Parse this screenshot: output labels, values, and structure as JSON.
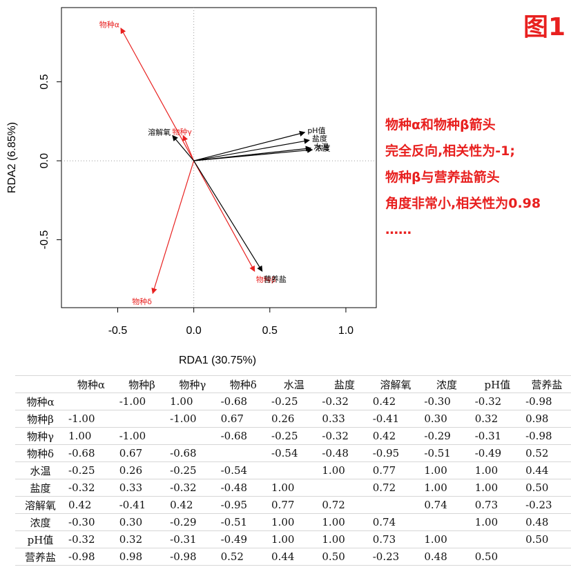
{
  "figure_label": "图1",
  "annotation_lines": [
    "物种α和物种β箭头",
    "完全反向,相关性为-1;",
    "物种β与营养盐箭头",
    "角度非常小,相关性为0.98",
    "……"
  ],
  "chart_data": {
    "type": "scatter",
    "subtype": "rda-biplot",
    "xlabel": "RDA1 (30.75%)",
    "ylabel": "RDA2 (6.85%)",
    "xlim": [
      -0.87,
      1.2
    ],
    "ylim": [
      -0.93,
      0.97
    ],
    "xticks": [
      -0.5,
      0.0,
      0.5,
      1.0
    ],
    "xtick_labels": [
      "-0.5",
      "0.0",
      "0.5",
      "1.0"
    ],
    "yticks": [
      -0.5,
      0.0,
      0.5
    ],
    "ytick_labels": [
      "-0.5",
      "0.0",
      "0.5"
    ],
    "reference_lines": {
      "x": 0,
      "y": 0,
      "style": "dotted"
    },
    "arrows": [
      {
        "label": "物种α",
        "x": -0.48,
        "y": 0.84,
        "color": "#e8201f"
      },
      {
        "label": "物种β",
        "x": 0.4,
        "y": -0.7,
        "color": "#e8201f"
      },
      {
        "label": "物种γ",
        "x": -0.07,
        "y": 0.16,
        "color": "#e8201f"
      },
      {
        "label": "物种δ",
        "x": -0.27,
        "y": -0.84,
        "color": "#e8201f"
      },
      {
        "label": "pH值",
        "x": 0.73,
        "y": 0.18,
        "color": "#000000"
      },
      {
        "label": "盐度",
        "x": 0.76,
        "y": 0.13,
        "color": "#000000"
      },
      {
        "label": "浓度",
        "x": 0.78,
        "y": 0.07,
        "color": "#000000"
      },
      {
        "label": "水温",
        "x": 0.77,
        "y": 0.08,
        "color": "#000000"
      },
      {
        "label": "溶解氧",
        "x": -0.14,
        "y": 0.16,
        "color": "#000000"
      },
      {
        "label": "营养盐",
        "x": 0.45,
        "y": -0.7,
        "color": "#000000"
      }
    ]
  },
  "table": {
    "headers": [
      "",
      "物种α",
      "物种β",
      "物种γ",
      "物种δ",
      "水温",
      "盐度",
      "溶解氧",
      "浓度",
      "pH值",
      "营养盐"
    ],
    "rows": [
      [
        "物种α",
        "",
        "-1.00",
        "1.00",
        "-0.68",
        "-0.25",
        "-0.32",
        "0.42",
        "-0.30",
        "-0.32",
        "-0.98"
      ],
      [
        "物种β",
        "-1.00",
        "",
        "-1.00",
        "0.67",
        "0.26",
        "0.33",
        "-0.41",
        "0.30",
        "0.32",
        "0.98"
      ],
      [
        "物种γ",
        "1.00",
        "-1.00",
        "",
        "-0.68",
        "-0.25",
        "-0.32",
        "0.42",
        "-0.29",
        "-0.31",
        "-0.98"
      ],
      [
        "物种δ",
        "-0.68",
        "0.67",
        "-0.68",
        "",
        "-0.54",
        "-0.48",
        "-0.95",
        "-0.51",
        "-0.49",
        "0.52"
      ],
      [
        "水温",
        "-0.25",
        "0.26",
        "-0.25",
        "-0.54",
        "",
        "1.00",
        "0.77",
        "1.00",
        "1.00",
        "0.44"
      ],
      [
        "盐度",
        "-0.32",
        "0.33",
        "-0.32",
        "-0.48",
        "1.00",
        "",
        "0.72",
        "1.00",
        "1.00",
        "0.50"
      ],
      [
        "溶解氧",
        "0.42",
        "-0.41",
        "0.42",
        "-0.95",
        "0.77",
        "0.72",
        "",
        "0.74",
        "0.73",
        "-0.23"
      ],
      [
        "浓度",
        "-0.30",
        "0.30",
        "-0.29",
        "-0.51",
        "1.00",
        "1.00",
        "0.74",
        "",
        "1.00",
        "0.48"
      ],
      [
        "pH值",
        "-0.32",
        "0.32",
        "-0.31",
        "-0.49",
        "1.00",
        "1.00",
        "0.73",
        "1.00",
        "",
        "0.50"
      ],
      [
        "营养盐",
        "-0.98",
        "0.98",
        "-0.98",
        "0.52",
        "0.44",
        "0.50",
        "-0.23",
        "0.48",
        "0.50",
        ""
      ]
    ]
  }
}
